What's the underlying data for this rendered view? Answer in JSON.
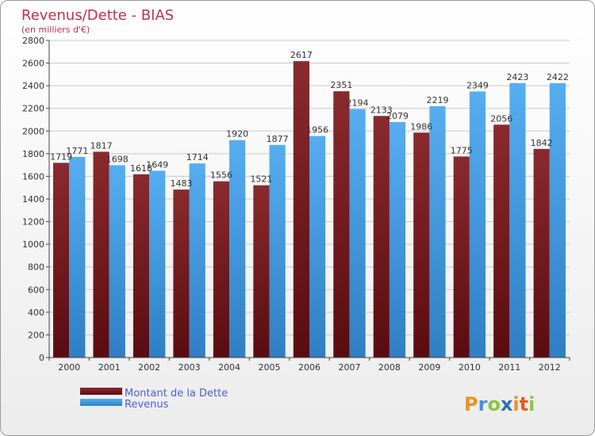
{
  "chart_data": {
    "type": "bar",
    "title": "Revenus/Dette - BIAS",
    "subtitle": "(en milliers d'€)",
    "categories": [
      "2000",
      "2001",
      "2002",
      "2003",
      "2004",
      "2005",
      "2006",
      "2007",
      "2008",
      "2009",
      "2010",
      "2011",
      "2012"
    ],
    "series": [
      {
        "name": "Montant de la Dette",
        "color": "#7a1e22",
        "values": [
          1719,
          1817,
          1618,
          1483,
          1556,
          1521,
          2617,
          2351,
          2133,
          1986,
          1775,
          2056,
          1842
        ],
        "labels": [
          "1719",
          "1817",
          "1618",
          "1483",
          "1556",
          "1521",
          "2617",
          "2351",
          "2133",
          "1986",
          "1775",
          "2056",
          "1842"
        ]
      },
      {
        "name": "Revenus",
        "color": "#4aa3e2",
        "values": [
          1771,
          1698,
          1649,
          1714,
          1920,
          1877,
          1956,
          2194,
          2079,
          2219,
          2349,
          2423,
          2422
        ],
        "labels": [
          "1771",
          "1698",
          "1649",
          "1714",
          "1920",
          "1877",
          "1956",
          "2194",
          "2079",
          "2219",
          "2349",
          "2423",
          "2422"
        ]
      }
    ],
    "ylim": [
      0,
      2800
    ],
    "yticks": [
      0,
      200,
      400,
      600,
      800,
      1000,
      1200,
      1400,
      1600,
      1800,
      2000,
      2200,
      2400,
      2600,
      2800
    ],
    "grid": true,
    "legend": "bottom-left"
  },
  "logo": {
    "letters": [
      "P",
      "r",
      "o",
      "x",
      "i",
      "t",
      "i"
    ],
    "colors": [
      "#e8941c",
      "#4a8fd6",
      "#8cc63f",
      "#2f6fb5",
      "#e8941c",
      "#e05a2a",
      "#8cc63f"
    ]
  },
  "colors": {
    "title": "#c0304a",
    "axis": "#444444",
    "grid": "#c9c9c9"
  }
}
